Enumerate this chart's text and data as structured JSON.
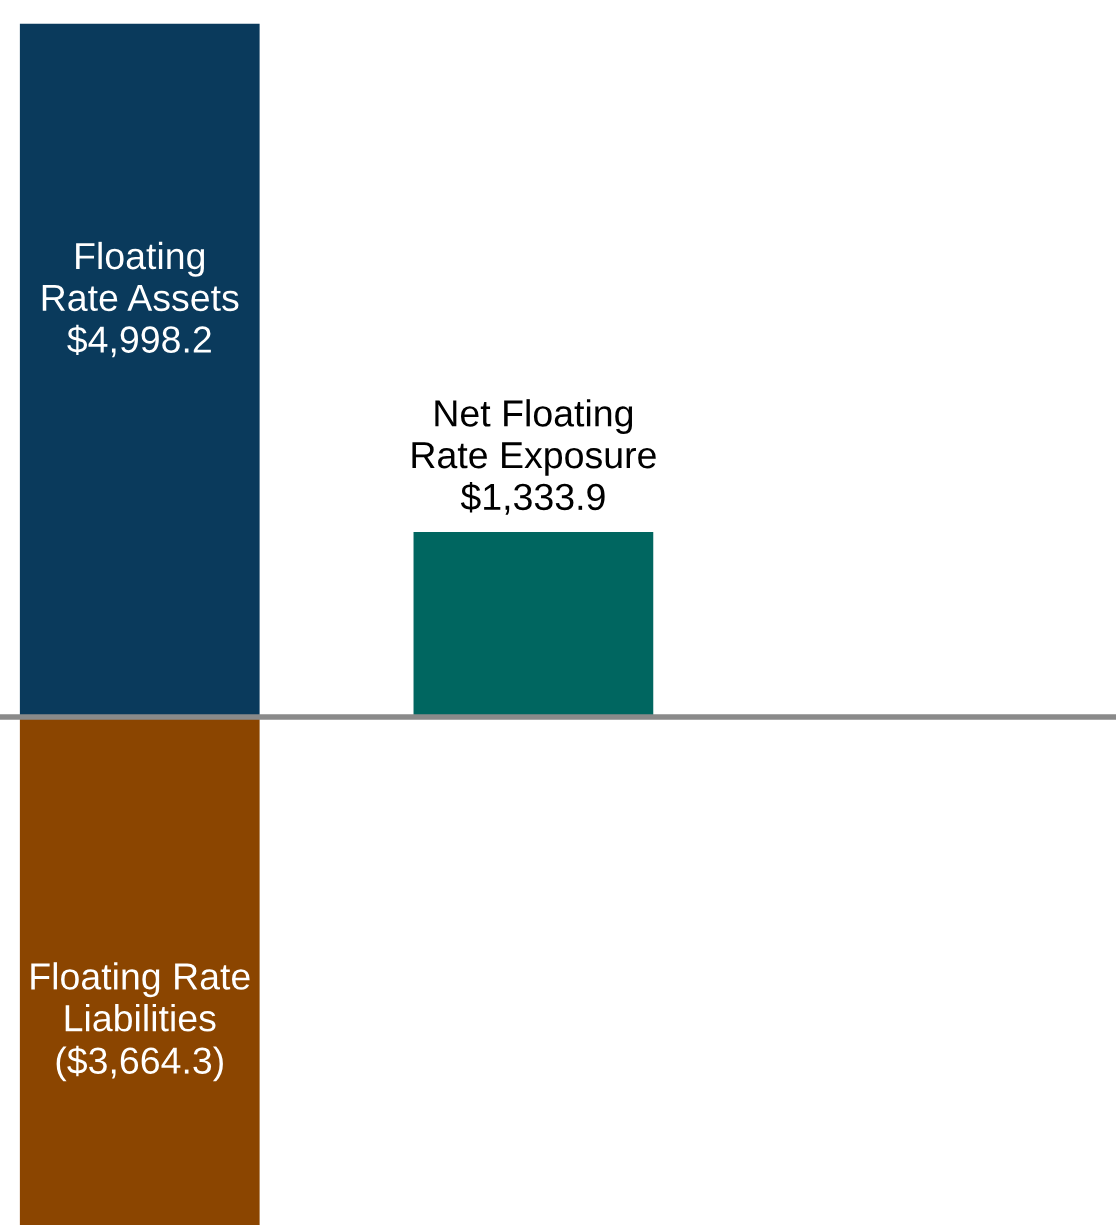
{
  "chart_data": {
    "type": "bar",
    "stacked": true,
    "categories": [
      null,
      null
    ],
    "ylim": [
      -3700,
      5170
    ],
    "series": [
      {
        "colors": [
          "#0a3a5c",
          "#006660"
        ],
        "values": [
          4998.2,
          1333.9
        ],
        "value_labels": [
          "Floating\nRate Assets\n$4,998.2",
          "Net Floating\nRate Exposure\n$1,333.9"
        ]
      },
      {
        "colors": [
          "#8b4500",
          null
        ],
        "values": [
          -3664.3,
          null
        ],
        "value_labels": [
          "Floating Rate\nLiabilities\n($3,664.3)",
          null
        ]
      }
    ]
  }
}
